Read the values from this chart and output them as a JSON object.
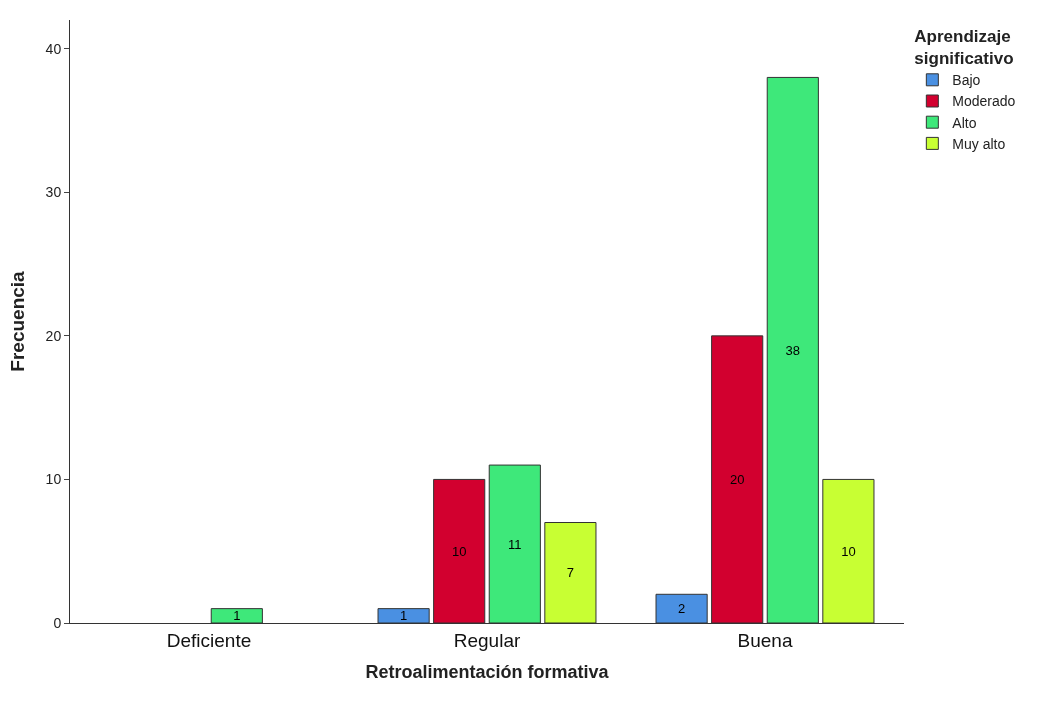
{
  "chart_data": {
    "type": "bar",
    "xlabel": "Retroalimentación formativa",
    "ylabel": "Frecuencia",
    "legend_title": "Aprendizaje significativo",
    "categories": [
      "Deficiente",
      "Regular",
      "Buena"
    ],
    "series": [
      {
        "name": "Bajo",
        "color": "#4a90e2",
        "values": [
          null,
          1,
          2
        ]
      },
      {
        "name": "Moderado",
        "color": "#d2002f",
        "values": [
          null,
          10,
          20
        ]
      },
      {
        "name": "Alto",
        "color": "#3ee87a",
        "values": [
          1,
          11,
          38
        ]
      },
      {
        "name": "Muy alto",
        "color": "#c8ff33",
        "values": [
          null,
          7,
          10
        ]
      }
    ],
    "ylim": [
      0,
      42
    ],
    "yticks": [
      0,
      10,
      20,
      30,
      40
    ],
    "legend": "top right",
    "data_labels": true
  }
}
